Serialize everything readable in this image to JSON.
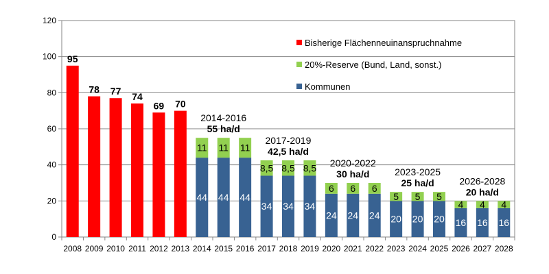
{
  "chart_data": {
    "type": "bar",
    "stacked": true,
    "categories": [
      "2008",
      "2009",
      "2010",
      "2011",
      "2012",
      "2013",
      "2014",
      "2015",
      "2016",
      "2017",
      "2018",
      "2019",
      "2020",
      "2021",
      "2022",
      "2023",
      "2024",
      "2025",
      "2026",
      "2027",
      "2028"
    ],
    "ylim": [
      0,
      120
    ],
    "yticks": [
      "0",
      "20",
      "40",
      "60",
      "80",
      "100",
      "120"
    ],
    "grid": true,
    "legend_position": "top-right",
    "series": [
      {
        "name": "Bisherige Flächenneuinanspruchnahme",
        "color": "#ff0000",
        "values": [
          95,
          78,
          77,
          74,
          69,
          70,
          null,
          null,
          null,
          null,
          null,
          null,
          null,
          null,
          null,
          null,
          null,
          null,
          null,
          null,
          null
        ],
        "labels": [
          "95",
          "78",
          "77",
          "74",
          "69",
          "70",
          "",
          "",
          "",
          "",
          "",
          "",
          "",
          "",
          "",
          "",
          "",
          "",
          "",
          "",
          ""
        ]
      },
      {
        "name": "Kommunen",
        "color": "#386292",
        "values": [
          null,
          null,
          null,
          null,
          null,
          null,
          44,
          44,
          44,
          34,
          34,
          34,
          24,
          24,
          24,
          20,
          20,
          20,
          16,
          16,
          16
        ],
        "labels": [
          "",
          "",
          "",
          "",
          "",
          "",
          "44",
          "44",
          "44",
          "34",
          "34",
          "34",
          "24",
          "24",
          "24",
          "20",
          "20",
          "20",
          "16",
          "16",
          "16"
        ]
      },
      {
        "name": "20%-Reserve (Bund, Land, sonst.)",
        "color": "#92d050",
        "values": [
          null,
          null,
          null,
          null,
          null,
          null,
          11,
          11,
          11,
          8.5,
          8.5,
          8.5,
          6,
          6,
          6,
          5,
          5,
          5,
          4,
          4,
          4
        ],
        "labels": [
          "",
          "",
          "",
          "",
          "",
          "",
          "11",
          "11",
          "11",
          "8,5",
          "8,5",
          "8,5",
          "6",
          "6",
          "6",
          "5",
          "5",
          "5",
          "4",
          "4",
          "4"
        ]
      }
    ],
    "legend": [
      {
        "label": "Bisherige Flächenneuinanspruchnahme",
        "color": "#ff0000"
      },
      {
        "label": "20%-Reserve (Bund, Land, sonst.)",
        "color": "#92d050"
      },
      {
        "label": "Kommunen",
        "color": "#386292"
      }
    ],
    "annotations": [
      {
        "period": "2014-2016",
        "target": "55 ha/d",
        "first": 6,
        "last": 8,
        "at": 55
      },
      {
        "period": "2017-2019",
        "target": "42,5 ha/d",
        "first": 9,
        "last": 11,
        "at": 42.5
      },
      {
        "period": "2020-2022",
        "target": "30 ha/d",
        "first": 12,
        "last": 14,
        "at": 30
      },
      {
        "period": "2023-2025",
        "target": "25 ha/d",
        "first": 15,
        "last": 17,
        "at": 25
      },
      {
        "period": "2026-2028",
        "target": "20 ha/d",
        "first": 18,
        "last": 20,
        "at": 20
      }
    ]
  }
}
